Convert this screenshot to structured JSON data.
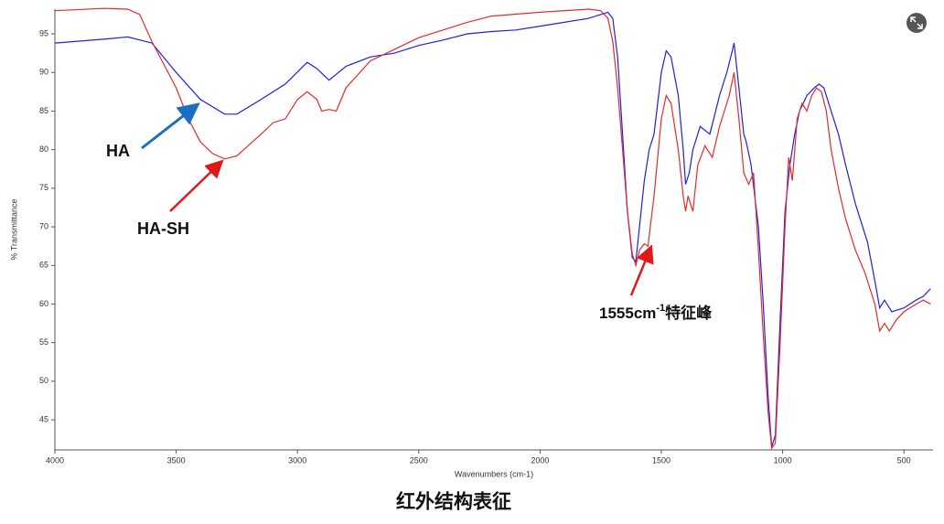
{
  "chart_data": {
    "type": "line",
    "y_label": "% Transmittance",
    "x_label": "Wavenumbers (cm-1)",
    "caption": "红外结构表征",
    "annotations": {
      "ha": "HA",
      "hash": "HA-SH",
      "peak": {
        "text": "1555cm",
        "sup": "-1",
        "after": "特征峰"
      }
    },
    "xlim": [
      4000,
      380
    ],
    "ylim": [
      41.1,
      98.2
    ],
    "xticks": [
      4000,
      3500,
      3000,
      2500,
      2000,
      1500,
      1000,
      500
    ],
    "yticks": [
      45,
      50,
      55,
      60,
      65,
      70,
      75,
      80,
      85,
      90,
      95
    ],
    "grid": false,
    "series": [
      {
        "name": "HA",
        "color": "#1f1fe6",
        "x": [
          4000,
          3800,
          3700,
          3600,
          3500,
          3400,
          3300,
          3250,
          3150,
          3050,
          2960,
          2920,
          2870,
          2800,
          2700,
          2600,
          2500,
          2400,
          2300,
          2200,
          2100,
          2000,
          1900,
          1800,
          1720,
          1700,
          1680,
          1660,
          1640,
          1620,
          1605,
          1590,
          1570,
          1550,
          1530,
          1500,
          1480,
          1460,
          1430,
          1410,
          1400,
          1385,
          1370,
          1340,
          1300,
          1260,
          1230,
          1210,
          1200,
          1180,
          1160,
          1150,
          1130,
          1100,
          1080,
          1060,
          1045,
          1030,
          1010,
          990,
          970,
          950,
          930,
          900,
          870,
          850,
          830,
          800,
          770,
          740,
          700,
          650,
          620,
          600,
          580,
          550,
          500,
          450,
          420,
          390
        ],
        "values": [
          93.8,
          94.3,
          94.6,
          93.8,
          90,
          86.5,
          84.6,
          84.6,
          86.5,
          88.5,
          91.3,
          90.5,
          89,
          90.8,
          92,
          92.5,
          93.5,
          94.2,
          95,
          95.3,
          95.5,
          96,
          96.5,
          97,
          97.8,
          97,
          92,
          82,
          72,
          66,
          65.5,
          70,
          76,
          80,
          82,
          90,
          92.8,
          92,
          87,
          80,
          75.5,
          77,
          80,
          83,
          82,
          87,
          90,
          92.5,
          93.8,
          88,
          82,
          81,
          78,
          70,
          60,
          48,
          41.5,
          43,
          58,
          72,
          78,
          82,
          85,
          87,
          88,
          88.5,
          88,
          85,
          82,
          78,
          73,
          68,
          63,
          59.5,
          60.5,
          59,
          59.5,
          60.5,
          61,
          62
        ]
      },
      {
        "name": "HA-SH",
        "color": "#e62a2a",
        "x": [
          4000,
          3800,
          3700,
          3650,
          3600,
          3500,
          3450,
          3400,
          3350,
          3300,
          3250,
          3150,
          3100,
          3050,
          3000,
          2960,
          2920,
          2900,
          2870,
          2840,
          2800,
          2700,
          2600,
          2500,
          2400,
          2300,
          2200,
          2000,
          1800,
          1750,
          1720,
          1700,
          1680,
          1660,
          1640,
          1620,
          1605,
          1590,
          1570,
          1555,
          1530,
          1500,
          1480,
          1460,
          1430,
          1410,
          1400,
          1390,
          1370,
          1350,
          1320,
          1290,
          1260,
          1220,
          1200,
          1180,
          1160,
          1140,
          1120,
          1100,
          1080,
          1060,
          1045,
          1030,
          1010,
          990,
          975,
          960,
          940,
          920,
          900,
          880,
          860,
          840,
          820,
          800,
          770,
          740,
          700,
          660,
          620,
          600,
          580,
          560,
          530,
          500,
          450,
          420,
          390
        ],
        "values": [
          98,
          98.3,
          98.2,
          97.5,
          94,
          88,
          84,
          81,
          79.5,
          78.8,
          79.2,
          82,
          83.5,
          84,
          86.5,
          87.5,
          86.5,
          85,
          85.2,
          85,
          88,
          91.5,
          93,
          94.5,
          95.5,
          96.5,
          97.3,
          97.8,
          98.2,
          98,
          97,
          94,
          88,
          80,
          72,
          66.5,
          65,
          67,
          67.8,
          67.5,
          74,
          84,
          87,
          86,
          80,
          74,
          72,
          74,
          72,
          78,
          80.5,
          79,
          83,
          87,
          90,
          84,
          77,
          75.5,
          77,
          67,
          56,
          46,
          41.3,
          42,
          55,
          70,
          79,
          76,
          84,
          86,
          85,
          87,
          88,
          87.5,
          85,
          80,
          75,
          71,
          67,
          64,
          60,
          56.5,
          57.5,
          56.5,
          58,
          59,
          60,
          60.5,
          60
        ]
      }
    ]
  }
}
